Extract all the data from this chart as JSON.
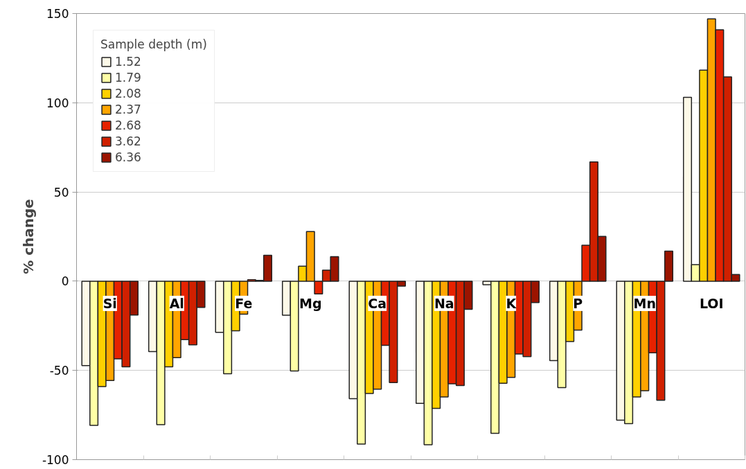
{
  "chart_data": {
    "type": "bar",
    "ylabel": "% change",
    "legend_title": "Sample depth (m)",
    "categories": [
      "Si",
      "Al",
      "Fe",
      "Mg",
      "Ca",
      "Na",
      "K",
      "P",
      "Mn",
      "LOI"
    ],
    "series": [
      {
        "name": "1.52",
        "color": "#fdf9e8",
        "values": [
          -47.3,
          -39.4,
          -28.7,
          -19.1,
          -65.8,
          -68.5,
          -2,
          -44.5,
          -77.9,
          103
        ]
      },
      {
        "name": "1.79",
        "color": "#ffffa6",
        "values": [
          -80.8,
          -80.4,
          -51.9,
          -50.3,
          -91.3,
          -91.7,
          -85.2,
          -59.6,
          -79.8,
          9.3
        ]
      },
      {
        "name": "2.08",
        "color": "#ffd000",
        "values": [
          -59,
          -48,
          -27.8,
          8.4,
          -62.9,
          -71.3,
          -57.2,
          -33.8,
          -64.9,
          118.3
        ]
      },
      {
        "name": "2.37",
        "color": "#ffa500",
        "values": [
          -55.6,
          -42.8,
          -18.5,
          27.8,
          -60.5,
          -64.9,
          -53.9,
          -27.4,
          -61.4,
          147
        ]
      },
      {
        "name": "2.68",
        "color": "#e62200",
        "values": [
          -43.5,
          -32.7,
          0.8,
          -7.1,
          -35.9,
          -57.5,
          -40.8,
          20.1,
          -40.1,
          140.9
        ]
      },
      {
        "name": "3.62",
        "color": "#d02000",
        "values": [
          -48,
          -35.7,
          0.4,
          6.2,
          -56.8,
          -58.5,
          -42.3,
          66.8,
          -66.7,
          114.5
        ]
      },
      {
        "name": "6.36",
        "color": "#9b1400",
        "values": [
          -19,
          -14.7,
          14.5,
          13.7,
          -2.8,
          -15.8,
          -12,
          25.1,
          16.8,
          3.7
        ]
      }
    ],
    "ylim": [
      -100,
      150
    ],
    "yticks": [
      -100,
      -50,
      0,
      50,
      100,
      150
    ],
    "grid": "y",
    "legend": "top left",
    "tick_labels": "y"
  }
}
